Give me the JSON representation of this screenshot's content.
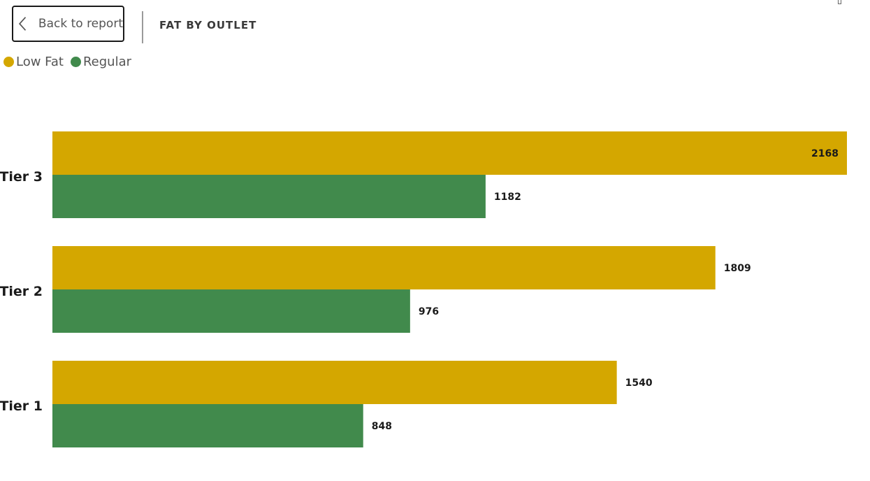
{
  "header": {
    "back_label": "Back to report",
    "title": "FAT BY OUTLET"
  },
  "colors": {
    "low_fat": "#D4A700",
    "regular": "#418A4C"
  },
  "icons": {
    "back": "chevron-left-icon"
  },
  "chart_data": {
    "type": "bar",
    "orientation": "horizontal",
    "categories": [
      "Tier 3",
      "Tier 2",
      "Tier 1"
    ],
    "series": [
      {
        "name": "Low Fat",
        "values": [
          2168,
          1809,
          1540
        ]
      },
      {
        "name": "Regular",
        "values": [
          1182,
          976,
          848
        ]
      }
    ],
    "legend_position": "top-left",
    "data_labels": true,
    "grid": false,
    "xlim": [
      0,
      2168
    ]
  }
}
